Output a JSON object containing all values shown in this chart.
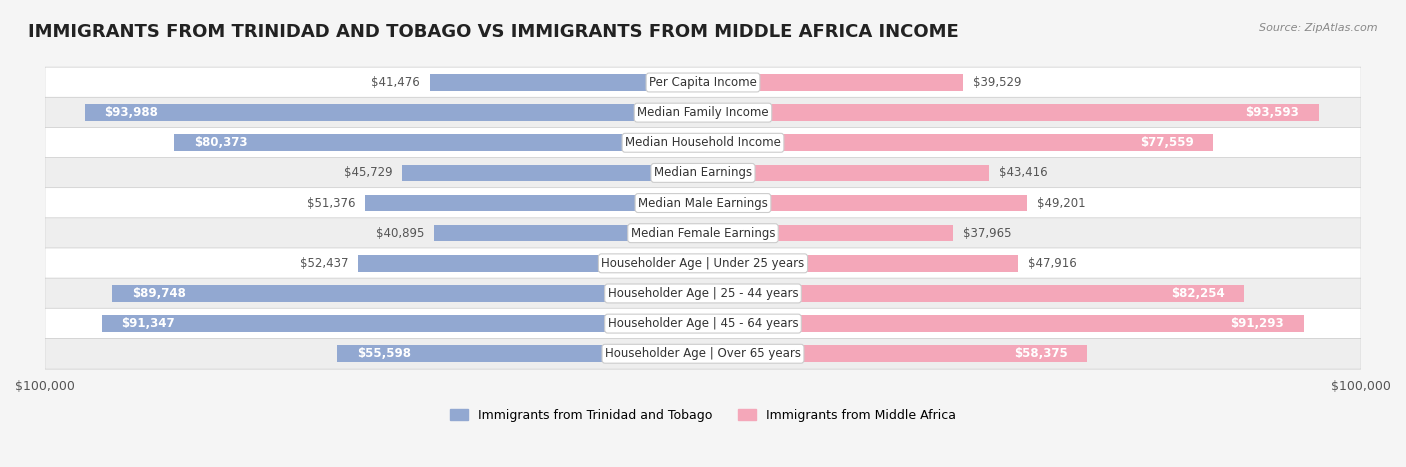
{
  "title": "IMMIGRANTS FROM TRINIDAD AND TOBAGO VS IMMIGRANTS FROM MIDDLE AFRICA INCOME",
  "source": "Source: ZipAtlas.com",
  "categories": [
    "Per Capita Income",
    "Median Family Income",
    "Median Household Income",
    "Median Earnings",
    "Median Male Earnings",
    "Median Female Earnings",
    "Householder Age | Under 25 years",
    "Householder Age | 25 - 44 years",
    "Householder Age | 45 - 64 years",
    "Householder Age | Over 65 years"
  ],
  "left_values": [
    41476,
    93988,
    80373,
    45729,
    51376,
    40895,
    52437,
    89748,
    91347,
    55598
  ],
  "right_values": [
    39529,
    93593,
    77559,
    43416,
    49201,
    37965,
    47916,
    82254,
    91293,
    58375
  ],
  "left_labels": [
    "$41,476",
    "$93,988",
    "$80,373",
    "$45,729",
    "$51,376",
    "$40,895",
    "$52,437",
    "$89,748",
    "$91,347",
    "$55,598"
  ],
  "right_labels": [
    "$39,529",
    "$93,593",
    "$77,559",
    "$43,416",
    "$49,201",
    "$37,965",
    "$47,916",
    "$82,254",
    "$91,293",
    "$58,375"
  ],
  "left_color": "#92a8d1",
  "right_color": "#f4a7b9",
  "left_dark_color": "#6080b8",
  "right_dark_color": "#e0607a",
  "max_value": 100000,
  "legend_left": "Immigrants from Trinidad and Tobago",
  "legend_right": "Immigrants from Middle Africa",
  "bg_color": "#f5f5f5",
  "row_bg_even": "#ffffff",
  "row_bg_odd": "#eeeeee",
  "title_fontsize": 13,
  "label_fontsize": 8.5,
  "category_fontsize": 8.5
}
